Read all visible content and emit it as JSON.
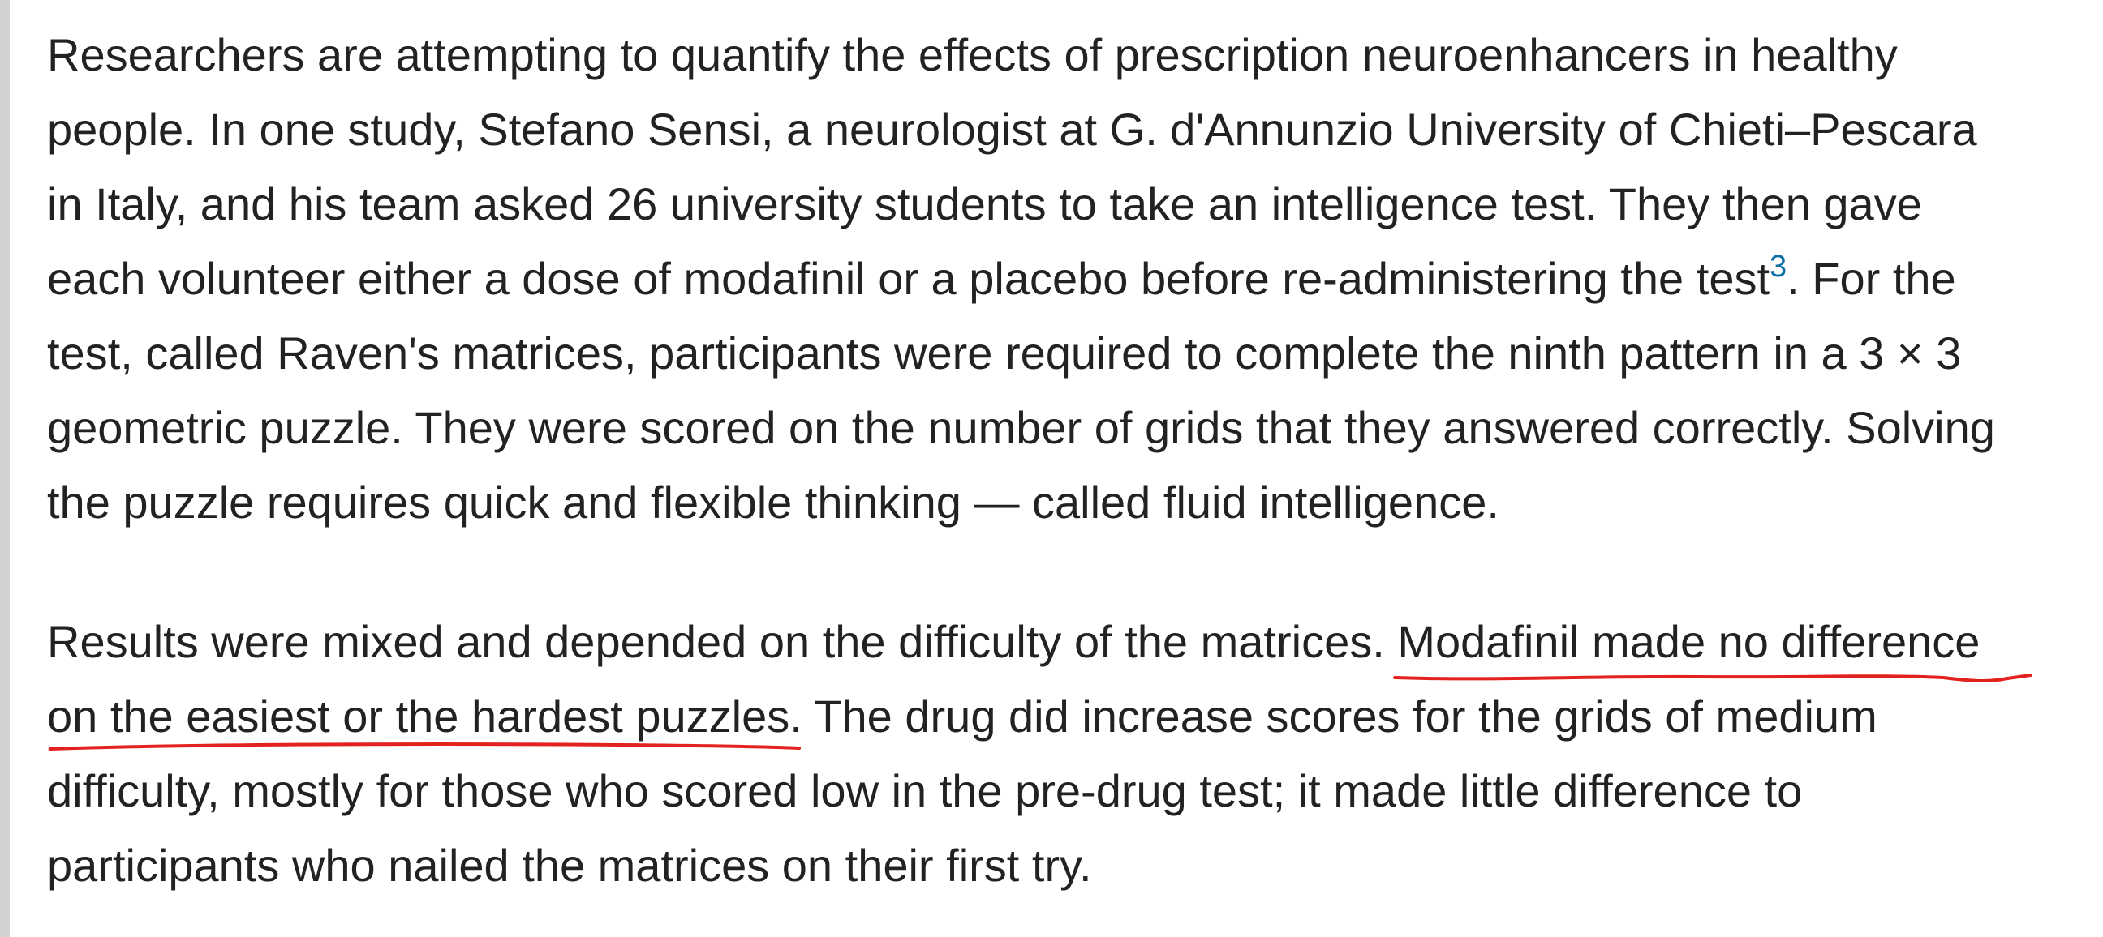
{
  "article": {
    "paragraph_1": {
      "line_1": "Researchers are attempting to quantify the effects of prescription neuroenhancers in healthy",
      "line_2": "people. In one study, Stefano Sensi, a neurologist at G. d'Annunzio University of Chieti–Pescara",
      "line_3": "in Italy, and his team asked 26 university students to take an intelligence test. They then gave",
      "line_4_before_citation": "each volunteer either a dose of modafinil or a placebo before re-administering the test",
      "citation": "3",
      "line_4_after_citation": ". For the",
      "line_5": "test, called Raven's matrices, participants were required to complete the ninth pattern in a 3 × 3",
      "line_6": "geometric puzzle. They were scored on the number of grids that they answered correctly. Solving",
      "line_7": "the puzzle requires quick and flexible thinking — called fluid intelligence."
    },
    "paragraph_2": {
      "line_1_plain": "Results were mixed and depended on the difficulty of the matrices. ",
      "line_1_highlight": "Modafinil made no difference",
      "line_2_highlight": "on the easiest or the hardest puzzles.",
      "line_2_plain": " The drug did increase scores for the grids of medium",
      "line_3": "difficulty, mostly for those who scored low in the pre-drug test; it made little difference to",
      "line_4": "participants who nailed the matrices on their first try."
    }
  },
  "colors": {
    "text": "#222222",
    "citation_link": "#0b6fa4",
    "underline_annotation": "#e3211f",
    "left_rule": "#d2d2d2",
    "background": "#ffffff"
  }
}
